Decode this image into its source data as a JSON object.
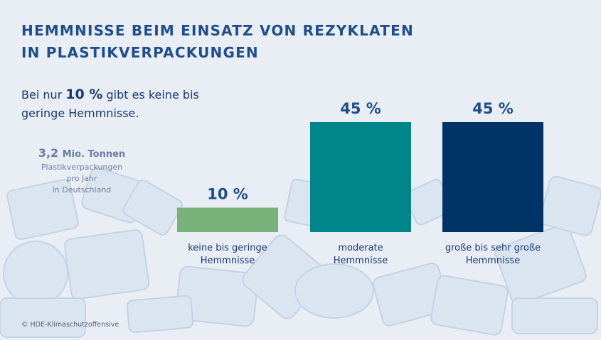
{
  "title": {
    "line1": "HEMMNISSE BEIM EINSATZ VON REZYKLATEN",
    "line2": "IN PLASTIKVERPACKUNGEN"
  },
  "lead": {
    "pre": "Bei nur ",
    "highlight": "10 %",
    "post": " gibt es keine bis geringe Hemmnisse."
  },
  "note": {
    "value": "3,2",
    "unit": "Mio. Tonnen",
    "line1": "Plastikverpackungen",
    "line2": "pro Jahr",
    "line3": "in Deutschland"
  },
  "credit": "© HDE-Klimaschutzoffensive",
  "chart_data": {
    "type": "bar",
    "categories": [
      "keine bis geringe Hemmnisse",
      "moderate Hemmnisse",
      "große bis sehr große Hemmnisse"
    ],
    "category_lines": [
      [
        "keine bis geringe",
        "Hemmnisse"
      ],
      [
        "moderate",
        "Hemmnisse"
      ],
      [
        "große bis sehr große",
        "Hemmnisse"
      ]
    ],
    "values": [
      10,
      45,
      45
    ],
    "value_labels": [
      "10 %",
      "45 %",
      "45 %"
    ],
    "colors": [
      "#78b27a",
      "#00868a",
      "#003366"
    ],
    "ylim": [
      0,
      45
    ],
    "grid": false,
    "legend": "none"
  }
}
